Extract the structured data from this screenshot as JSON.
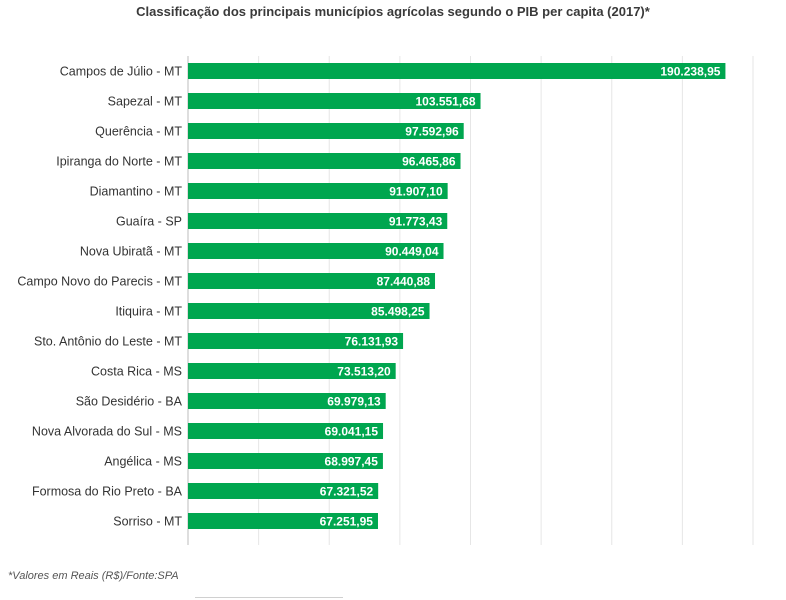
{
  "chart_data": {
    "type": "bar",
    "orientation": "horizontal",
    "title": "Classificação dos principais municípios agrícolas segundo o PIB per capita (2017)*",
    "categories": [
      "Campos de Júlio - MT",
      "Sapezal - MT",
      "Querência - MT",
      "Ipiranga do Norte - MT",
      "Diamantino - MT",
      "Guaíra - SP",
      "Nova Ubiratã - MT",
      "Campo Novo do Parecis - MT",
      "Itiquira - MT",
      "Sto. Antônio do Leste - MT",
      "Costa Rica - MS",
      "São Desidério - BA",
      "Nova Alvorada do Sul - MS",
      "Angélica - MS",
      "Formosa do Rio Preto - BA",
      "Sorriso - MT"
    ],
    "values": [
      190238.95,
      103551.68,
      97592.96,
      96465.86,
      91907.1,
      91773.43,
      90449.04,
      87440.88,
      85498.25,
      76131.93,
      73513.2,
      69979.13,
      69041.15,
      68997.45,
      67321.52,
      67251.95
    ],
    "value_labels": [
      "190.238,95",
      "103.551,68",
      "97.592,96",
      "96.465,86",
      "91.907,10",
      "91.773,43",
      "90.449,04",
      "87.440,88",
      "85.498,25",
      "76.131,93",
      "73.513,20",
      "69.979,13",
      "69.041,15",
      "68.997,45",
      "67.321,52",
      "67.251,95"
    ],
    "xlim": [
      0,
      200000
    ],
    "grid": true,
    "bar_color": "#00a64f",
    "label_color": "#ffffff"
  },
  "footnote": "*Valores em Reais (R$)/Fonte:SPA"
}
